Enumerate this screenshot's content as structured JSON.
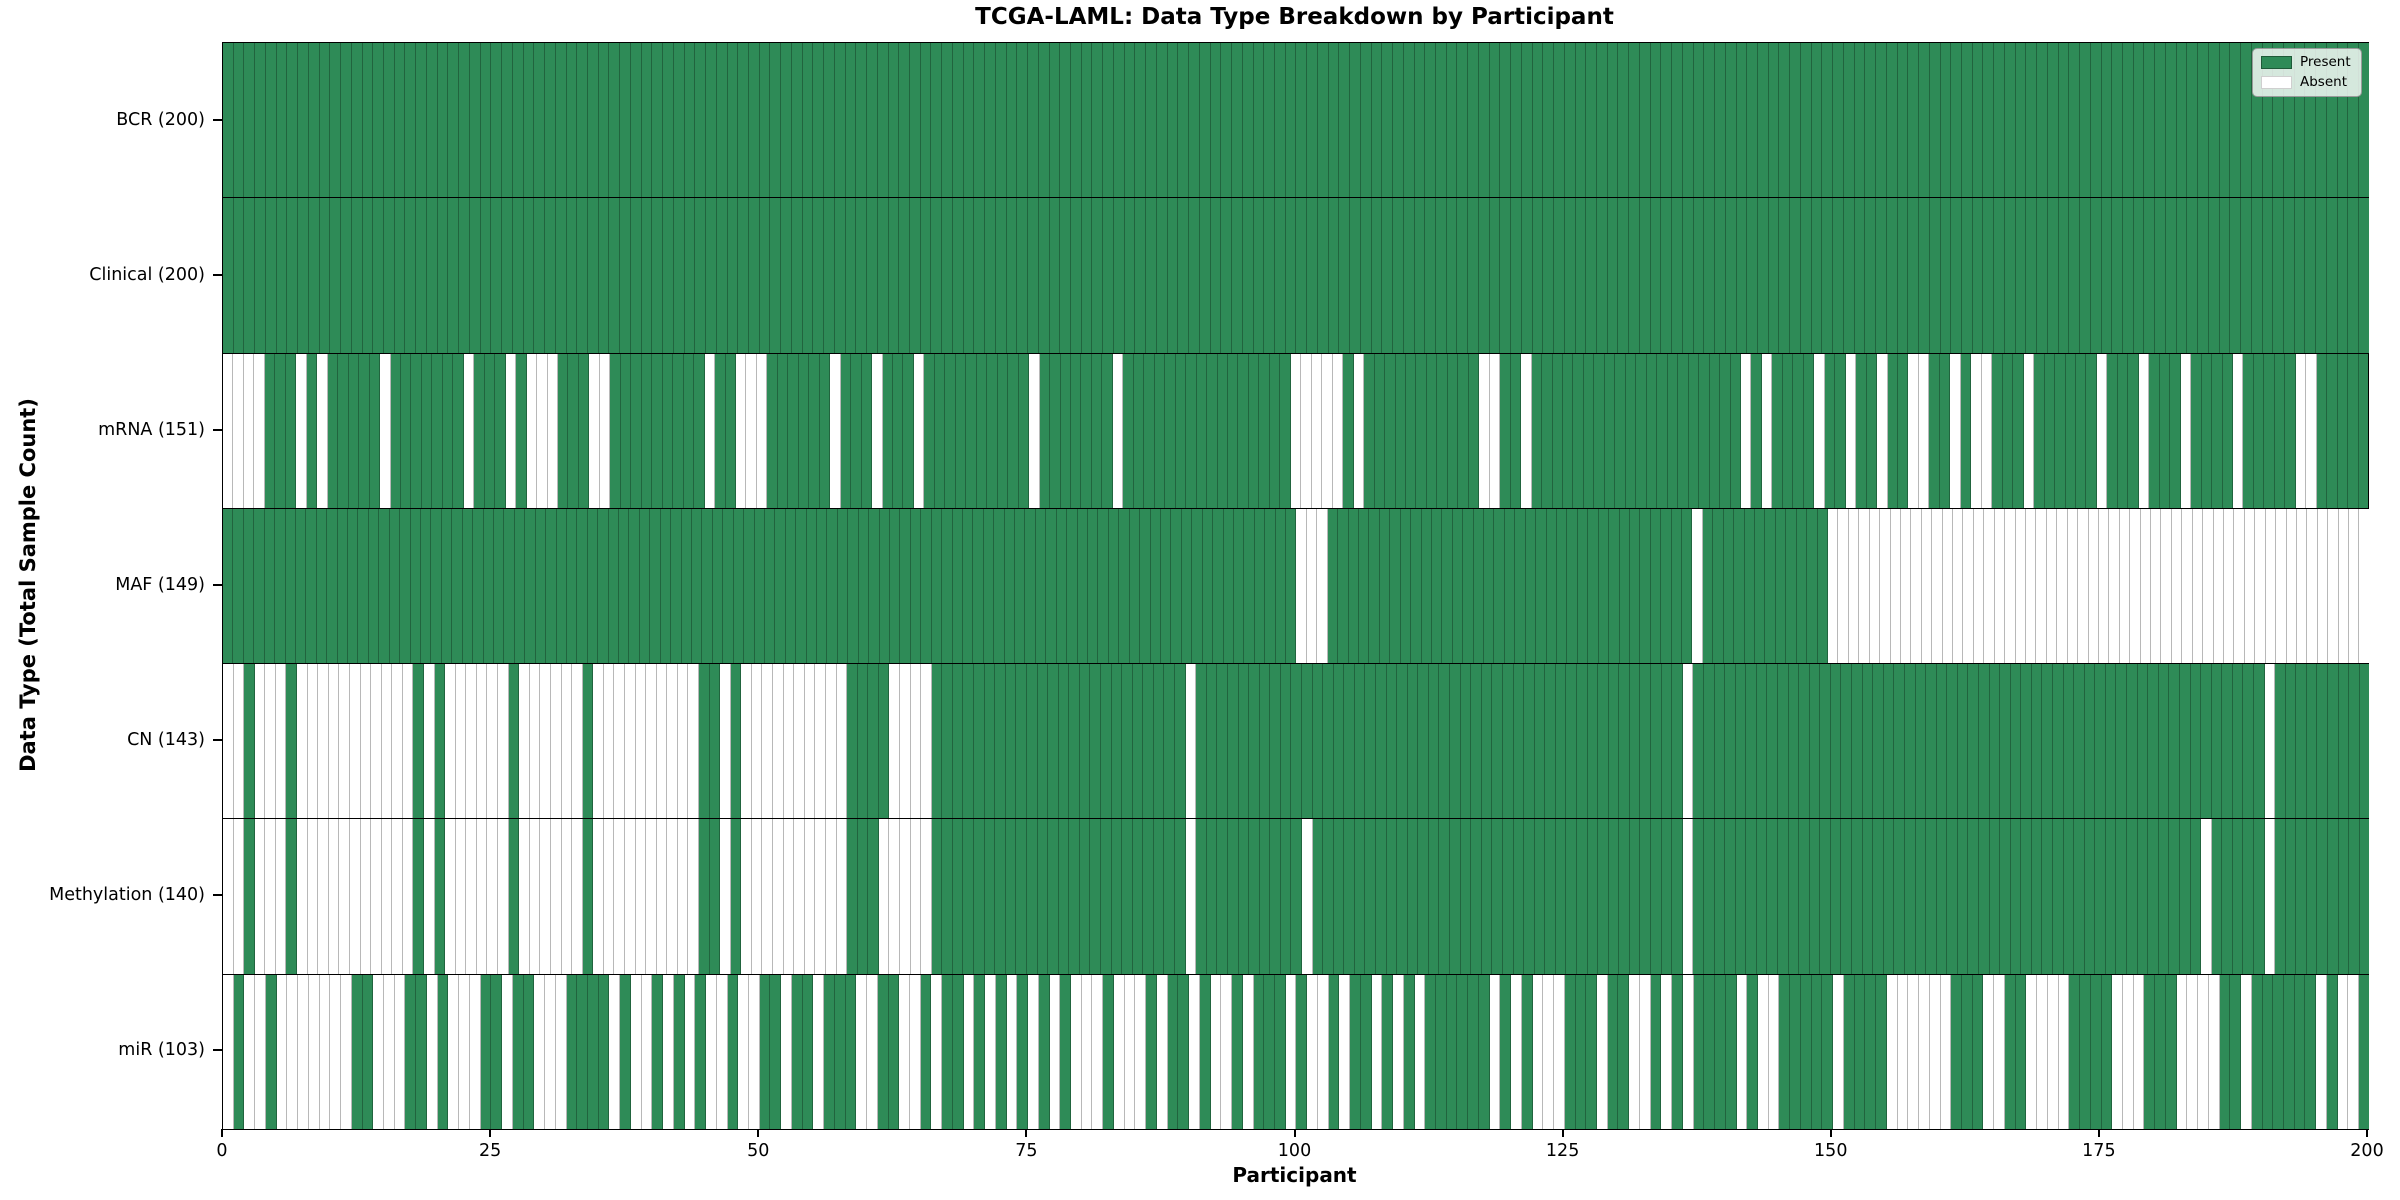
{
  "title": "TCGA-LAML: Data Type Breakdown by Participant",
  "axes": {
    "x_label": "Participant",
    "y_label": "Data Type (Total Sample Count)",
    "x_ticks": [
      0,
      25,
      50,
      75,
      100,
      125,
      150,
      175,
      200
    ],
    "x_range": [
      0,
      200
    ]
  },
  "legend": {
    "present": "Present",
    "absent": "Absent"
  },
  "colors": {
    "present": "#2e8b57",
    "absent": "#ffffff",
    "cell_edge": "rgba(0,0,0,0.28)",
    "row_divider": "#000000",
    "plot_border": "#000000"
  },
  "chart_data": {
    "type": "heatmap",
    "title": "TCGA-LAML: Data Type Breakdown by Participant",
    "xlabel": "Participant",
    "ylabel": "Data Type (Total Sample Count)",
    "x_range": [
      0,
      200
    ],
    "n_participants": 200,
    "grid": false,
    "legend_position": "upper right",
    "legend": [
      "Present",
      "Absent"
    ],
    "value_encoding": {
      "1": "Present",
      "0": "Absent"
    },
    "rows": [
      {
        "label": "BCR (200)",
        "name": "BCR",
        "present_count": 200,
        "pattern": "11111111111111111111111111111111111111111111111111111111111111111111111111111111111111111111111111111111111111111111111111111111111111111111111111111111111111111111111111111111111111111111111111111111"
      },
      {
        "label": "Clinical (200)",
        "name": "Clinical",
        "present_count": 200,
        "pattern": "11111111111111111111111111111111111111111111111111111111111111111111111111111111111111111111111111111111111111111111111111111111111111111111111111111111111111111111111111111111111111111111111111111111"
      },
      {
        "label": "mRNA (151)",
        "name": "mRNA",
        "present_count": 151,
        "pattern": "0000111010111110111111101110100011100111111111011000111111011101110111111111101111111011111111111111110000010111111111110011011111111111111111111010111101101101100110100111011111101110111011110111110011111"
      },
      {
        "label": "MAF (149)",
        "name": "MAF",
        "present_count": 149,
        "pattern": "11111111111111111111111111111111111111111111111111111111111111111111111111111111111111111111111111111110001111111111111111111111111111111111101111111111110000000000000000000000000000000000000000000000000000"
      },
      {
        "label": "CN (143)",
        "name": "CN",
        "present_count": 143,
        "pattern": "00100010000000000010100000010000001000000000011010000000000111100001111111111111111111111110111111111111111111111111111111111111111111111101111111111111111111111111111111111111111111111111111110111111111"
      },
      {
        "label": "Methylation (140)",
        "name": "Methylation",
        "present_count": 140,
        "pattern": "00100010000000000010100000010000001000000000011010000000000111000001111111111111111111111110111111111101111111111111111111111111111111111101111111111111111111111111111111111111111111111110111110111111111"
      },
      {
        "label": "miR (103)",
        "name": "miR",
        "present_count": 103,
        "pattern": "01001000000011000110100011011000111101001010100100110110111001100101101010101010001000101101001011101001011010101111110101000111011001010111101001111101111000000111001100001111000111000011011111101001"
      }
    ]
  }
}
